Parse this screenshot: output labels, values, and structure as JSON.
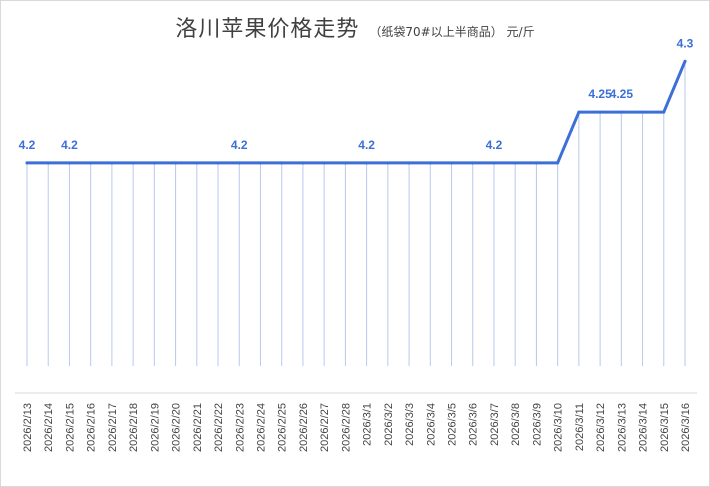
{
  "chart_data": {
    "type": "line",
    "title": "洛川苹果价格走势",
    "subtitle": "（纸袋70#以上半商品）  元/斤",
    "xlabel": "",
    "ylabel": "",
    "categories": [
      "2026/2/13",
      "2026/2/14",
      "2026/2/15",
      "2026/2/16",
      "2026/2/17",
      "2026/2/18",
      "2026/2/19",
      "2026/2/20",
      "2026/2/21",
      "2026/2/22",
      "2026/2/23",
      "2026/2/24",
      "2026/2/25",
      "2026/2/26",
      "2026/2/27",
      "2026/2/28",
      "2026/3/1",
      "2026/3/2",
      "2026/3/3",
      "2026/3/4",
      "2026/3/5",
      "2026/3/6",
      "2026/3/7",
      "2026/3/8",
      "2026/3/9",
      "2026/3/10",
      "2026/3/11",
      "2026/3/12",
      "2026/3/13",
      "2026/3/14",
      "2026/3/15",
      "2026/3/16"
    ],
    "series": [
      {
        "values": [
          4.2,
          4.2,
          4.2,
          4.2,
          4.2,
          4.2,
          4.2,
          4.2,
          4.2,
          4.2,
          4.2,
          4.2,
          4.2,
          4.2,
          4.2,
          4.2,
          4.2,
          4.2,
          4.2,
          4.2,
          4.2,
          4.2,
          4.2,
          4.2,
          4.2,
          4.2,
          4.25,
          4.25,
          4.25,
          4.25,
          4.25,
          4.3
        ],
        "color": "#3c6fd8"
      }
    ],
    "data_labels": [
      {
        "index": 0,
        "text": "4.2"
      },
      {
        "index": 2,
        "text": "4.2"
      },
      {
        "index": 10,
        "text": "4.2"
      },
      {
        "index": 16,
        "text": "4.2"
      },
      {
        "index": 22,
        "text": "4.2"
      },
      {
        "index": 27,
        "text": "4.25"
      },
      {
        "index": 28,
        "text": "4.25"
      },
      {
        "index": 31,
        "text": "4.3"
      }
    ],
    "ylim": [
      4.0,
      4.32
    ],
    "grid": false,
    "legend": "none",
    "drop_lines": true,
    "colors": {
      "line": "#3c6fd8",
      "drop_line": "#b7c9ef",
      "label": "#3c6fd8",
      "axis": "#d9d9d9",
      "tick_text": "#444444"
    }
  }
}
